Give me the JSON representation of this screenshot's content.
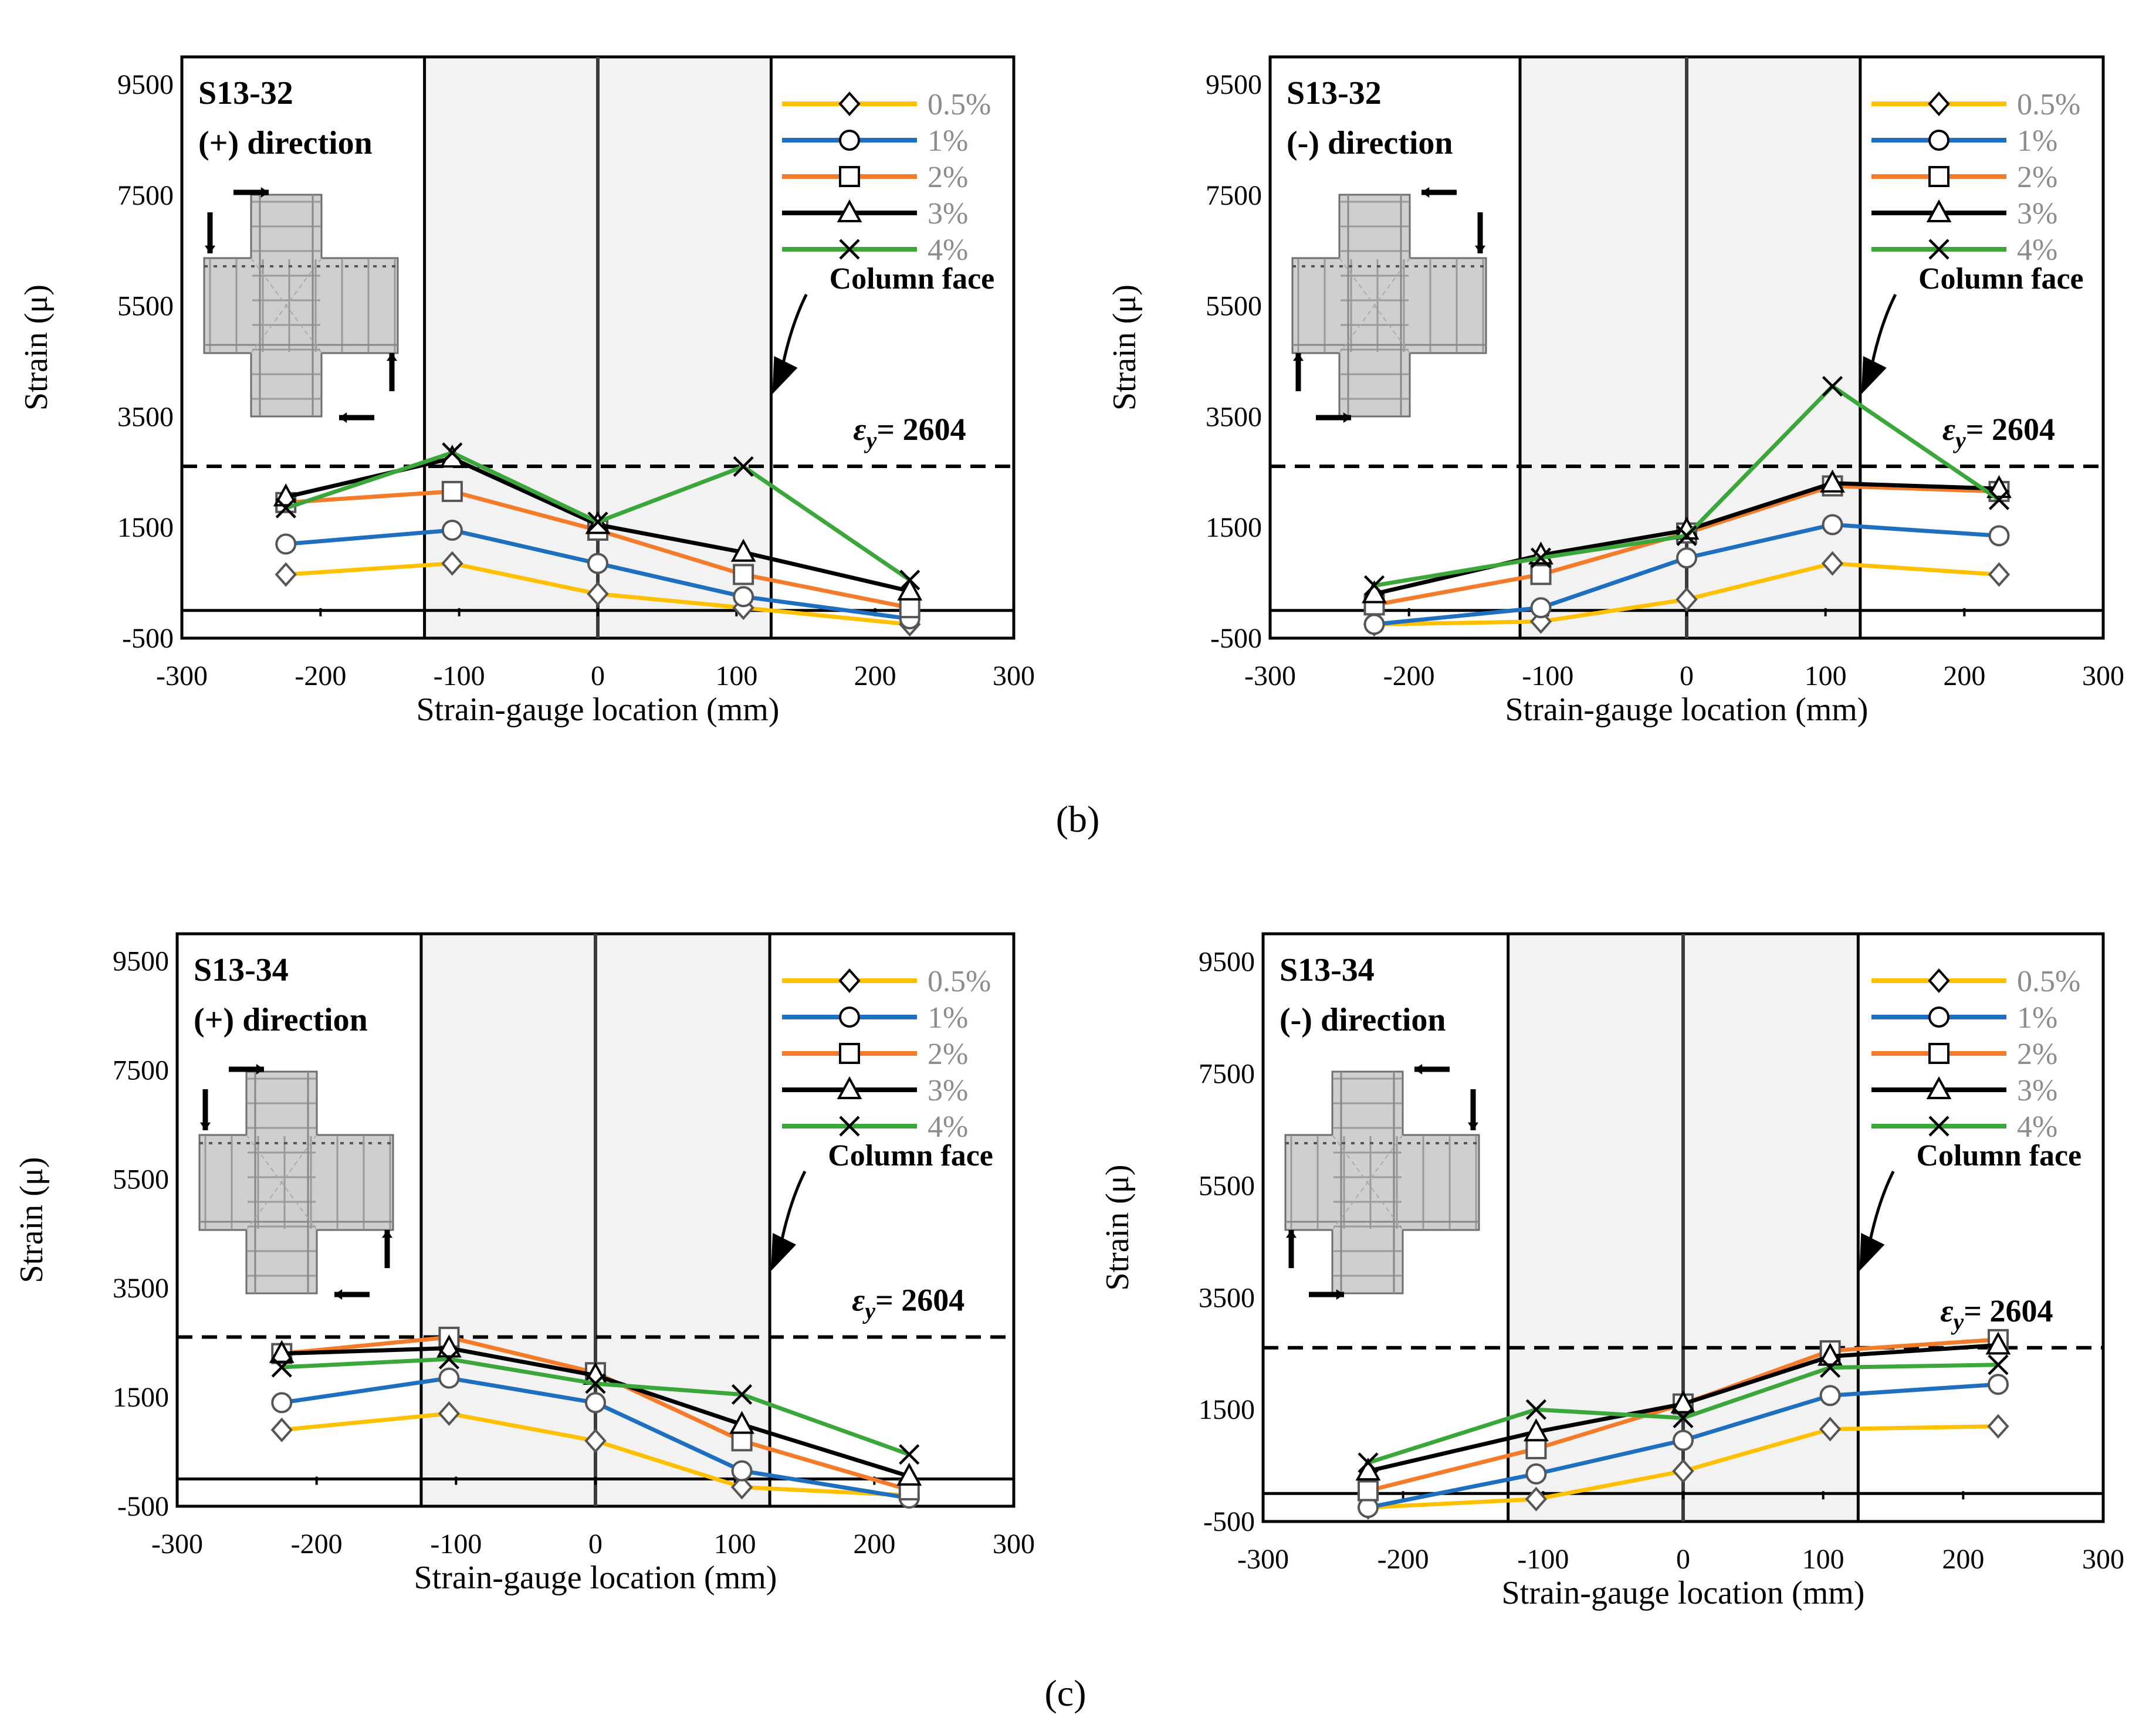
{
  "panel_labels": {
    "b": "(b)",
    "c": "(c)"
  },
  "colors": {
    "s05": "#FFC000",
    "s1": "#1F6FC1",
    "s2": "#F47B2A",
    "s3": "#000000",
    "s4": "#3BA73B",
    "shade": "#F2F2F2"
  },
  "chart_data": [
    {
      "type": "line",
      "id": "b-left",
      "panel": "(b)",
      "title": "S13-32",
      "subtitle": "(+) direction",
      "xlabel": "Strain-gauge location (mm)",
      "ylabel": "Strain (μ)",
      "xlim": [
        -300,
        300
      ],
      "ylim": [
        -500,
        10000
      ],
      "xticks": [
        -300,
        -200,
        -100,
        0,
        100,
        200,
        300
      ],
      "yticks": [
        -500,
        1500,
        3500,
        5500,
        7500,
        9500
      ],
      "x": [
        -225,
        -105,
        0,
        105,
        225
      ],
      "column_face_x": [
        -125,
        125
      ],
      "yield_strain": 2604,
      "yield_label": "= 2604",
      "yield_symbol": "ε",
      "yield_subscript": "y",
      "column_face_label": "Column face",
      "series": [
        {
          "name": "0.5%",
          "marker": "diamond",
          "values": [
            650,
            850,
            300,
            50,
            -250
          ]
        },
        {
          "name": "1%",
          "marker": "circle",
          "values": [
            1200,
            1450,
            850,
            250,
            -150
          ]
        },
        {
          "name": "2%",
          "marker": "square",
          "values": [
            1950,
            2150,
            1450,
            650,
            50
          ]
        },
        {
          "name": "3%",
          "marker": "triangle",
          "values": [
            2050,
            2750,
            1550,
            1050,
            350
          ]
        },
        {
          "name": "4%",
          "marker": "x",
          "values": [
            1850,
            2850,
            1600,
            2600,
            550
          ]
        }
      ]
    },
    {
      "type": "line",
      "id": "b-right",
      "panel": "(b)",
      "title": "S13-32",
      "subtitle": "(-) direction",
      "xlabel": "Strain-gauge location (mm)",
      "ylabel": "Strain (μ)",
      "xlim": [
        -300,
        300
      ],
      "ylim": [
        -500,
        10000
      ],
      "xticks": [
        -300,
        -200,
        -100,
        0,
        100,
        200,
        300
      ],
      "yticks": [
        -500,
        1500,
        3500,
        5500,
        7500,
        9500
      ],
      "x": [
        -225,
        -105,
        0,
        105,
        225
      ],
      "column_face_x": [
        -120,
        125
      ],
      "yield_strain": 2604,
      "yield_label": "= 2604",
      "yield_symbol": "ε",
      "yield_subscript": "y",
      "column_face_label": "Column face",
      "series": [
        {
          "name": "0.5%",
          "marker": "diamond",
          "values": [
            -250,
            -200,
            200,
            850,
            650
          ]
        },
        {
          "name": "1%",
          "marker": "circle",
          "values": [
            -250,
            50,
            950,
            1550,
            1350
          ]
        },
        {
          "name": "2%",
          "marker": "square",
          "values": [
            100,
            650,
            1400,
            2250,
            2150
          ]
        },
        {
          "name": "3%",
          "marker": "triangle",
          "values": [
            300,
            1000,
            1450,
            2300,
            2200
          ]
        },
        {
          "name": "4%",
          "marker": "x",
          "values": [
            450,
            950,
            1350,
            4050,
            2000
          ]
        }
      ]
    },
    {
      "type": "line",
      "id": "c-left",
      "panel": "(c)",
      "title": "S13-34",
      "subtitle": "(+) direction",
      "xlabel": "Strain-gauge location (mm)",
      "ylabel": "Strain (μ)",
      "xlim": [
        -300,
        300
      ],
      "ylim": [
        -500,
        10000
      ],
      "xticks": [
        -300,
        -200,
        -100,
        0,
        100,
        200,
        300
      ],
      "yticks": [
        -500,
        1500,
        3500,
        5500,
        7500,
        9500
      ],
      "x": [
        -225,
        -105,
        0,
        105,
        225
      ],
      "column_face_x": [
        -125,
        125
      ],
      "yield_strain": 2604,
      "yield_label": "= 2604",
      "yield_symbol": "ε",
      "yield_subscript": "y",
      "column_face_label": "Column face",
      "series": [
        {
          "name": "0.5%",
          "marker": "diamond",
          "values": [
            900,
            1200,
            700,
            -150,
            -300
          ]
        },
        {
          "name": "1%",
          "marker": "circle",
          "values": [
            1400,
            1850,
            1400,
            150,
            -350
          ]
        },
        {
          "name": "2%",
          "marker": "square",
          "values": [
            2300,
            2600,
            1950,
            700,
            -200
          ]
        },
        {
          "name": "3%",
          "marker": "triangle",
          "values": [
            2300,
            2400,
            1900,
            1000,
            50
          ]
        },
        {
          "name": "4%",
          "marker": "x",
          "values": [
            2050,
            2200,
            1750,
            1550,
            450
          ]
        }
      ]
    },
    {
      "type": "line",
      "id": "c-right",
      "panel": "(c)",
      "title": "S13-34",
      "subtitle": "(-) direction",
      "xlabel": "Strain-gauge location (mm)",
      "ylabel": "Strain (μ)",
      "xlim": [
        -300,
        300
      ],
      "ylim": [
        -500,
        10000
      ],
      "xticks": [
        -300,
        -200,
        -100,
        0,
        100,
        200,
        300
      ],
      "yticks": [
        -500,
        1500,
        3500,
        5500,
        7500,
        9500
      ],
      "x": [
        -225,
        -105,
        0,
        105,
        225
      ],
      "column_face_x": [
        -125,
        125
      ],
      "yield_strain": 2604,
      "yield_label": "= 2604",
      "yield_symbol": "ε",
      "yield_subscript": "y",
      "column_face_label": "Column face",
      "series": [
        {
          "name": "0.5%",
          "marker": "diamond",
          "values": [
            -250,
            -100,
            400,
            1150,
            1200
          ]
        },
        {
          "name": "1%",
          "marker": "circle",
          "values": [
            -250,
            350,
            950,
            1750,
            1950
          ]
        },
        {
          "name": "2%",
          "marker": "square",
          "values": [
            50,
            800,
            1600,
            2550,
            2750
          ]
        },
        {
          "name": "3%",
          "marker": "triangle",
          "values": [
            400,
            1100,
            1600,
            2450,
            2650
          ]
        },
        {
          "name": "4%",
          "marker": "x",
          "values": [
            550,
            1500,
            1350,
            2250,
            2300
          ]
        }
      ]
    }
  ]
}
